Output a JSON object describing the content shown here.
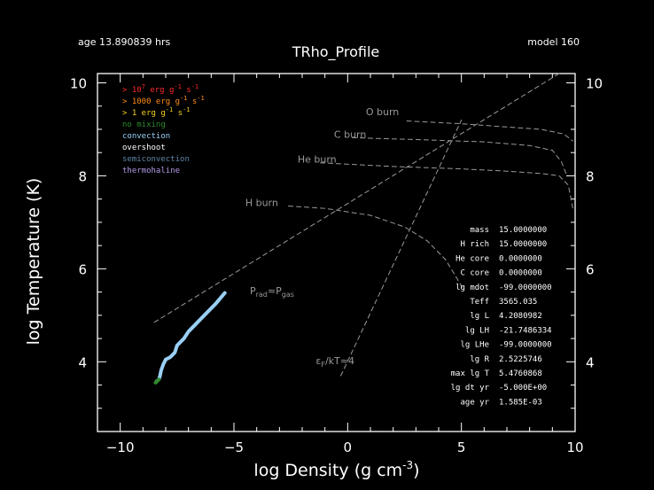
{
  "header": {
    "age": "age 13.890839 hrs",
    "title": "TRho_Profile",
    "model": "model 160"
  },
  "colors": {
    "background": "#000000",
    "axes": "#ffffff",
    "guide_lines": "#9a9a9a",
    "convection": "#9ad0f5",
    "no_mixing": "#2e8b2e",
    "legend_burn_1e7": "#ff2a2a",
    "legend_burn_1000": "#ff8c1a",
    "legend_burn_1": "#f5d020",
    "legend_overshoot": "#ffffff",
    "legend_semiconvection": "#5f86a8",
    "legend_thermohaline": "#b59ae8"
  },
  "legend": [
    {
      "label": "> 10",
      "sup": "7",
      "rest": " erg g",
      "sup2": "-1",
      "rest2": " s",
      "sup3": "-1",
      "color": "#ff2a2a"
    },
    {
      "label": "> 1000 erg g",
      "sup": "-1",
      "rest": " s",
      "sup2": "-1",
      "rest2": "",
      "sup3": "",
      "color": "#ff8c1a"
    },
    {
      "label": "> 1 erg g",
      "sup": "-1",
      "rest": " s",
      "sup2": "-1",
      "rest2": "",
      "sup3": "",
      "color": "#f5d020"
    },
    {
      "label": "no mixing",
      "sup": "",
      "rest": "",
      "sup2": "",
      "rest2": "",
      "sup3": "",
      "color": "#2e8b2e"
    },
    {
      "label": "convection",
      "sup": "",
      "rest": "",
      "sup2": "",
      "rest2": "",
      "sup3": "",
      "color": "#9ad0f5"
    },
    {
      "label": "overshoot",
      "sup": "",
      "rest": "",
      "sup2": "",
      "rest2": "",
      "sup3": "",
      "color": "#ffffff"
    },
    {
      "label": "semiconvection",
      "sup": "",
      "rest": "",
      "sup2": "",
      "rest2": "",
      "sup3": "",
      "color": "#5f86a8"
    },
    {
      "label": "thermohaline",
      "sup": "",
      "rest": "",
      "sup2": "",
      "rest2": "",
      "sup3": "",
      "color": "#b59ae8"
    }
  ],
  "info_panel": [
    {
      "key": "mass",
      "value": "15.0000000"
    },
    {
      "key": "H rich",
      "value": "15.0000000"
    },
    {
      "key": "He core",
      "value": "0.0000000"
    },
    {
      "key": "C core",
      "value": "0.0000000"
    },
    {
      "key": "lg mdot",
      "value": "-99.0000000"
    },
    {
      "key": "Teff",
      "value": "3565.035"
    },
    {
      "key": "lg L",
      "value": "4.2080982"
    },
    {
      "key": "lg LH",
      "value": "-21.7486334"
    },
    {
      "key": "lg LHe",
      "value": "-99.0000000"
    },
    {
      "key": "lg R",
      "value": "2.5225746"
    },
    {
      "key": "max lg T",
      "value": "5.4760868"
    },
    {
      "key": "lg dt yr",
      "value": "-5.000E+00"
    },
    {
      "key": "age yr",
      "value": "1.585E-03"
    }
  ],
  "chart_data": {
    "type": "line",
    "xlabel": "log Density (g cm",
    "xlabel_sup": "-3",
    "xlabel_end": ")",
    "ylabel": "log Temperature (K)",
    "xlim": [
      -11,
      10
    ],
    "ylim": [
      2.5,
      10.2
    ],
    "xticks": [
      -10,
      -5,
      0,
      5,
      10
    ],
    "xtick_labels": [
      "−10",
      "−5",
      "0",
      "5",
      "10"
    ],
    "yticks": [
      4,
      6,
      8,
      10
    ],
    "ytick_labels": [
      "4",
      "6",
      "8",
      "10"
    ],
    "grid": false,
    "series": [
      {
        "role": "profile",
        "color": "#9ad0f5",
        "x": [
          -5.4,
          -5.8,
          -6.3,
          -6.7,
          -7.0,
          -7.2,
          -7.5,
          -7.6,
          -7.8,
          -8.0,
          -8.1,
          -8.2,
          -8.25,
          -8.3,
          -8.4
        ],
        "y": [
          5.48,
          5.25,
          5.0,
          4.8,
          4.65,
          4.5,
          4.35,
          4.2,
          4.1,
          4.05,
          3.95,
          3.82,
          3.7,
          3.62,
          3.58
        ]
      },
      {
        "role": "no-mixing",
        "color": "#2e8b2e",
        "x": [
          -8.3,
          -8.45
        ],
        "y": [
          3.62,
          3.55
        ]
      },
      {
        "role": "H burn",
        "color": "#9a9a9a",
        "x": [
          -2.6,
          -1,
          1,
          2.5,
          3.5,
          4.3,
          4.8,
          5.1
        ],
        "y": [
          7.35,
          7.3,
          7.15,
          6.9,
          6.6,
          6.2,
          5.8,
          5.55
        ]
      },
      {
        "role": "He burn",
        "color": "#9a9a9a",
        "x": [
          -1.2,
          2,
          5,
          7,
          8.5,
          9.3,
          9.7,
          9.9
        ],
        "y": [
          8.28,
          8.2,
          8.15,
          8.1,
          8.05,
          8.0,
          7.8,
          7.3
        ]
      },
      {
        "role": "C burn",
        "color": "#9a9a9a",
        "x": [
          0.2,
          3,
          6,
          8,
          9,
          9.4,
          9.6
        ],
        "y": [
          8.82,
          8.78,
          8.73,
          8.65,
          8.55,
          8.3,
          8.05
        ]
      },
      {
        "role": "O burn",
        "color": "#9a9a9a",
        "x": [
          2.6,
          5,
          7,
          8.5,
          9.5,
          9.9
        ],
        "y": [
          9.18,
          9.12,
          9.05,
          9.0,
          8.9,
          8.75
        ]
      },
      {
        "role": "Prad=Pgas",
        "color": "#9a9a9a",
        "x": [
          -8.5,
          9.3
        ],
        "y": [
          4.85,
          10.2
        ]
      },
      {
        "role": "eF/kT=4",
        "color": "#9a9a9a",
        "x": [
          -0.3,
          5
        ],
        "y": [
          3.7,
          9.2
        ]
      }
    ],
    "annotations": [
      {
        "text": "O burn",
        "x": 0.8,
        "y": 9.3
      },
      {
        "text": "C burn",
        "x": -0.6,
        "y": 8.82
      },
      {
        "text": "He burn",
        "x": -2.2,
        "y": 8.28
      },
      {
        "text": "H burn",
        "x": -4.5,
        "y": 7.35
      },
      {
        "text": "P",
        "sub": "rad",
        "mid": "≈P",
        "sub2": "gas",
        "x": -4.3,
        "y": 5.45
      },
      {
        "text": "ε",
        "sub": "F",
        "mid": "/kT≈4",
        "sub2": "",
        "x": -1.4,
        "y": 3.95
      }
    ]
  }
}
